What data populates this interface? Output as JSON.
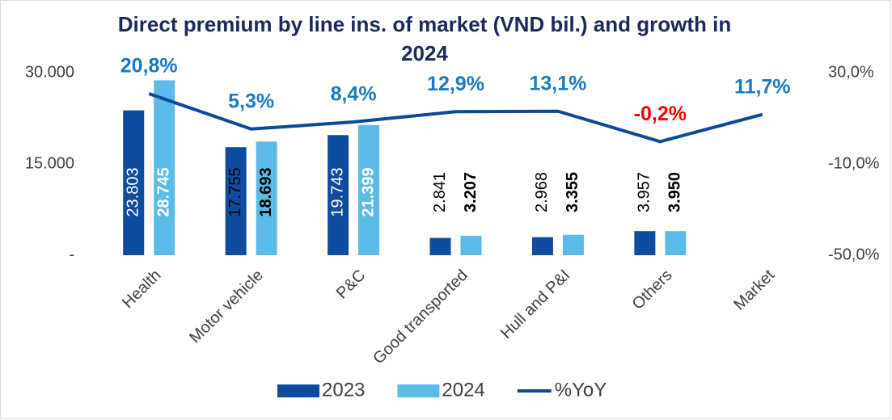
{
  "chart_data": {
    "type": "bar_line",
    "title": "Direct premium by line ins. of market (VND bil.) and growth in 2024",
    "categories": [
      "Health",
      "Motor vehicle",
      "P&C",
      "Good transported",
      "Hull and P&I",
      "Others",
      "Market"
    ],
    "series": [
      {
        "name": "2023",
        "type": "bar",
        "color": "#0d4c9e",
        "values": [
          23803,
          17755,
          19743,
          2841,
          2968,
          3957,
          null
        ],
        "value_labels": [
          "23.803",
          "17.755",
          "19.743",
          "2.841",
          "2.968",
          "3.957",
          null
        ]
      },
      {
        "name": "2024",
        "type": "bar",
        "color": "#5bbbe8",
        "values": [
          28745,
          18693,
          21399,
          3207,
          3355,
          3950,
          null
        ],
        "value_labels": [
          "28.745",
          "18.693",
          "21.399",
          "3.207",
          "3.355",
          "3.950",
          null
        ]
      },
      {
        "name": "%YoY",
        "type": "line",
        "axis": "y2",
        "color": "#0b4a99",
        "label_color": "#1a7ac4",
        "negative_label_color": "#ff0000",
        "values": [
          20.8,
          5.3,
          8.4,
          12.9,
          13.1,
          -0.2,
          11.7
        ],
        "value_labels": [
          "20,8%",
          "5,3%",
          "8,4%",
          "12,9%",
          "13,1%",
          "-0,2%",
          "11,7%"
        ]
      }
    ],
    "ylim": [
      0,
      30000
    ],
    "yticks": [
      {
        "value": 0,
        "label": "-"
      },
      {
        "value": 15000,
        "label": "15.000"
      },
      {
        "value": 30000,
        "label": "30.000"
      }
    ],
    "y2lim": [
      -50,
      30
    ],
    "y2ticks": [
      {
        "value": -50,
        "label": "-50,0%"
      },
      {
        "value": -10,
        "label": "-10,0%"
      },
      {
        "value": 30,
        "label": "30,0%"
      }
    ],
    "grid": false,
    "legend": "bottom"
  }
}
